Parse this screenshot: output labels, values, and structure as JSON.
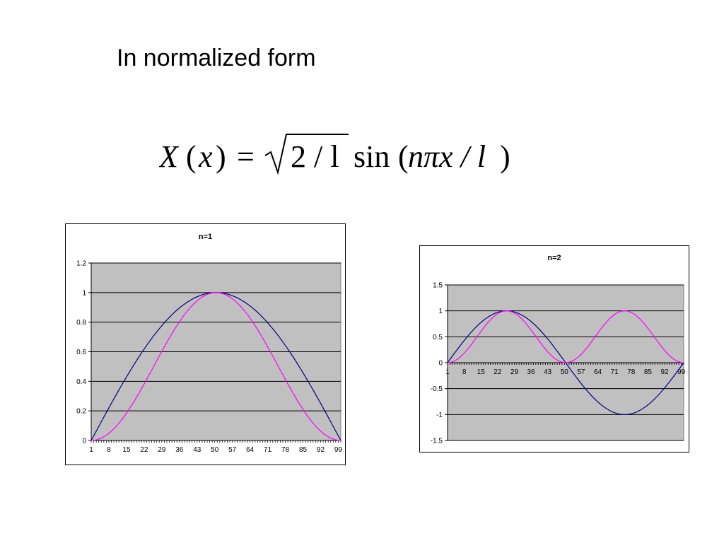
{
  "page": {
    "heading": "In normalized form"
  },
  "formula": {
    "lhs": "X",
    "lparen": "(",
    "var": "x",
    "rparen": ")",
    "equals": "=",
    "radicand": "2 / l",
    "func": "sin",
    "arg_open": "(",
    "arg": "nπx / l",
    "arg_close": ")"
  },
  "colors": {
    "plot_bg": "#c0c0c0",
    "grid": "#000000",
    "series_sin": "#000080",
    "series_sin2": "#ff00ff"
  },
  "chart_data": [
    {
      "type": "line",
      "title": "n=1",
      "x_start": 1,
      "x_end": 100,
      "xticks": [
        1,
        8,
        15,
        22,
        29,
        36,
        43,
        50,
        57,
        64,
        71,
        78,
        85,
        92,
        99
      ],
      "yticks": [
        "0",
        "0.2",
        "0.4",
        "0.6",
        "0.8",
        "1",
        "1.2"
      ],
      "ylim": [
        0,
        1.2
      ],
      "ytick_step": 0.2,
      "grid": true,
      "legend": "none",
      "xlabel": "",
      "ylabel": "",
      "n": 1,
      "series": [
        {
          "formula": "sin(n·π·(x-1)/99)",
          "color": "#000080",
          "values_sampled": {
            "x": [
              1,
              25.75,
              50.5,
              75.25,
              100
            ],
            "y": [
              0,
              0.707,
              1,
              0.707,
              0
            ]
          }
        },
        {
          "formula": "sin²(n·π·(x-1)/99)",
          "color": "#ff00ff",
          "values_sampled": {
            "x": [
              1,
              25.75,
              50.5,
              75.25,
              100
            ],
            "y": [
              0,
              0.5,
              1,
              0.5,
              0
            ]
          }
        }
      ]
    },
    {
      "type": "line",
      "title": "n=2",
      "x_start": 1,
      "x_end": 100,
      "xticks": [
        1,
        8,
        15,
        22,
        29,
        36,
        43,
        50,
        57,
        64,
        71,
        78,
        85,
        92,
        99
      ],
      "yticks": [
        "-1.5",
        "-1",
        "-0.5",
        "0",
        "0.5",
        "1",
        "1.5"
      ],
      "ylim": [
        -1.5,
        1.5
      ],
      "ytick_step": 0.5,
      "grid": true,
      "legend": "none",
      "xlabel": "",
      "ylabel": "",
      "n": 2,
      "series": [
        {
          "formula": "sin(n·π·(x-1)/99)",
          "color": "#000080",
          "values_sampled": {
            "x": [
              1,
              25.75,
              50.5,
              75.25,
              100
            ],
            "y": [
              0,
              1,
              0,
              -1,
              0
            ]
          }
        },
        {
          "formula": "sin²(n·π·(x-1)/99)",
          "color": "#ff00ff",
          "values_sampled": {
            "x": [
              1,
              25.75,
              50.5,
              75.25,
              100
            ],
            "y": [
              0,
              1,
              0,
              1,
              0
            ]
          }
        }
      ]
    }
  ]
}
